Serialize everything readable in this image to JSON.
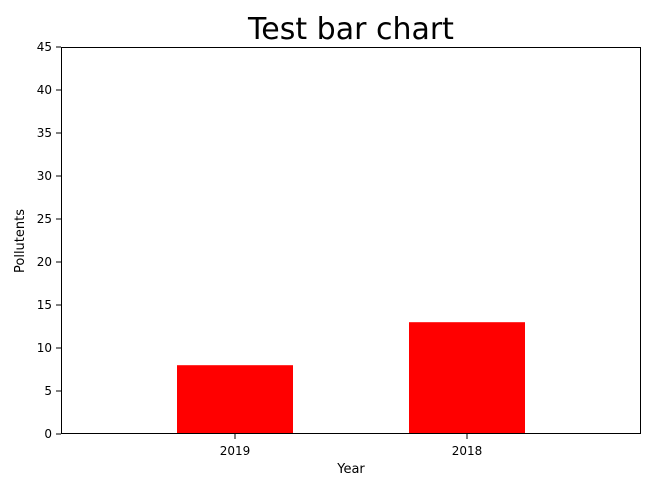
{
  "chart_data": {
    "type": "bar",
    "title": "Test bar chart",
    "xlabel": "Year",
    "ylabel": "Pollutents",
    "categories": [
      "2019",
      "2018"
    ],
    "values": [
      8,
      13
    ],
    "ylim": [
      0,
      45
    ],
    "yticks": [
      0,
      5,
      10,
      15,
      20,
      25,
      30,
      35,
      40,
      45
    ],
    "bar_color": "#ff0000",
    "grid": false,
    "legend": false
  }
}
